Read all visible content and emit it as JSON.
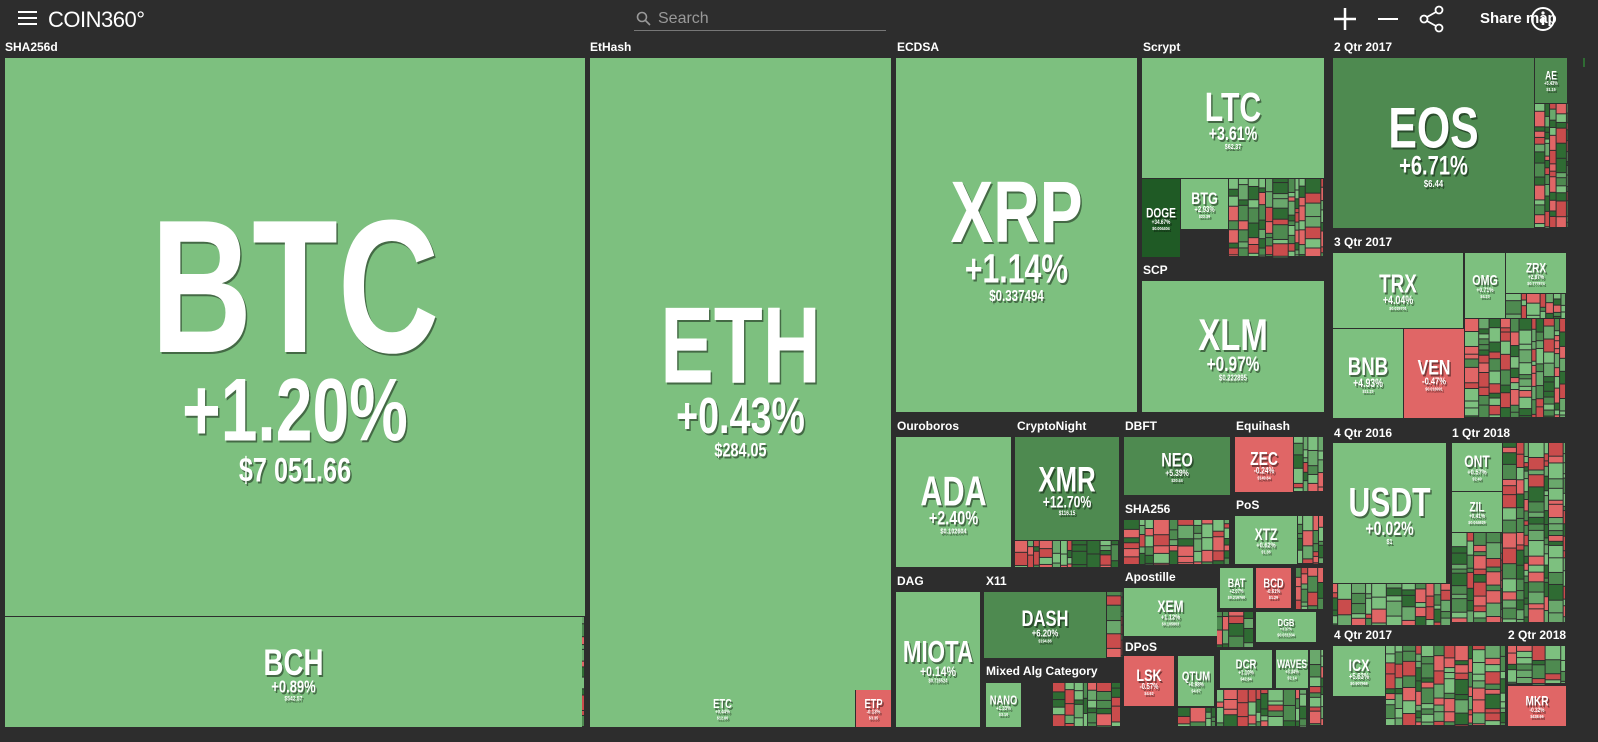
{
  "header": {
    "logo": "COIN360°",
    "search_placeholder": "Search",
    "share_label": "Share map"
  },
  "groups": [
    "SHA256d",
    "EtHash",
    "ECDSA",
    "Scrypt",
    "2 Qtr 2017",
    "SCP",
    "3 Qtr 2017",
    "Ouroboros",
    "CryptoNight",
    "DBFT",
    "Equihash",
    "SHA256",
    "PoS",
    "DAG",
    "X11",
    "Apostille",
    "Mixed Alg Category",
    "DPoS",
    "4 Qtr 2016",
    "1 Qtr 2018",
    "4 Qtr 2017",
    "2 Qtr 2018"
  ],
  "tiles": [
    {
      "symbol": "BTC",
      "change": "+1.20%",
      "price": "$7 051.66"
    },
    {
      "symbol": "BCH",
      "change": "+0.89%",
      "price": "$542.57"
    },
    {
      "symbol": "ETH",
      "change": "+0.43%",
      "price": "$284.05"
    },
    {
      "symbol": "ETC",
      "change": "+0.44%",
      "price": "$12.86"
    },
    {
      "symbol": "ETP",
      "change": "-0.13%",
      "price": "$3.35"
    },
    {
      "symbol": "XRP",
      "change": "+1.14%",
      "price": "$0.337494"
    },
    {
      "symbol": "LTC",
      "change": "+3.61%",
      "price": "$62.37"
    },
    {
      "symbol": "XLM",
      "change": "+0.97%",
      "price": "$0.222895"
    },
    {
      "symbol": "EOS",
      "change": "+6.71%",
      "price": "$6.44"
    },
    {
      "symbol": "AE",
      "change": "+5.43%",
      "price": "$1.15"
    },
    {
      "symbol": "TRX",
      "change": "+4.04%",
      "price": "$0.025701"
    },
    {
      "symbol": "OMG",
      "change": "+0.71%",
      "price": "$4.23"
    },
    {
      "symbol": "ZRX",
      "change": "+2.87%",
      "price": "$0.777874"
    },
    {
      "symbol": "BNB",
      "change": "+4.93%",
      "price": "$11.23"
    },
    {
      "symbol": "VEN",
      "change": "-0.47%",
      "price": "$0.016991"
    },
    {
      "symbol": "ADA",
      "change": "+2.40%",
      "price": "$0.102604"
    },
    {
      "symbol": "XMR",
      "change": "+12.70%",
      "price": "$116.15"
    },
    {
      "symbol": "NEO",
      "change": "+5.39%",
      "price": "$20.44"
    },
    {
      "symbol": "ZEC",
      "change": "-0.24%",
      "price": "$149.84"
    },
    {
      "symbol": "XTZ",
      "change": "+0.62%",
      "price": "$1.36"
    },
    {
      "symbol": "DASH",
      "change": "+6.20%",
      "price": "$194.86"
    },
    {
      "symbol": "MIOTA",
      "change": "+0.14%",
      "price": "$0.716524"
    },
    {
      "symbol": "XEM",
      "change": "+1.12%",
      "price": "$0.105803"
    },
    {
      "symbol": "LSK",
      "change": "-0.57%",
      "price": "$4.62"
    },
    {
      "symbol": "QTUM",
      "change": "+0.98%",
      "price": "$4.67"
    },
    {
      "symbol": "USDT",
      "change": "+0.02%",
      "price": "$1"
    },
    {
      "symbol": "ONT",
      "change": "+0.57%",
      "price": "$2.49"
    },
    {
      "symbol": "ZIL",
      "change": "+0.41%",
      "price": "$0.044625"
    },
    {
      "symbol": "ICX",
      "change": "+5.63%",
      "price": "$0.907968"
    },
    {
      "symbol": "MKR",
      "change": "-0.32%",
      "price": "$438.66"
    },
    {
      "symbol": "DOGE",
      "change": "+34.67%",
      "price": "$0.004404"
    },
    {
      "symbol": "BTG",
      "change": "+2.93%",
      "price": "$22.39"
    },
    {
      "symbol": "BAT",
      "change": "+2.07%",
      "price": "$0.219760"
    },
    {
      "symbol": "BCD",
      "change": "-0.61%",
      "price": "$1.29"
    },
    {
      "symbol": "DGB",
      "change": "+3.37%",
      "price": "$0.031304"
    },
    {
      "symbol": "DCR",
      "change": "+1.10%",
      "price": "$42.84"
    },
    {
      "symbol": "WAVES",
      "change": "+3.34%",
      "price": "$2.14"
    },
    {
      "symbol": "NANO",
      "change": "+1.33%",
      "price": "$3.10"
    }
  ]
}
